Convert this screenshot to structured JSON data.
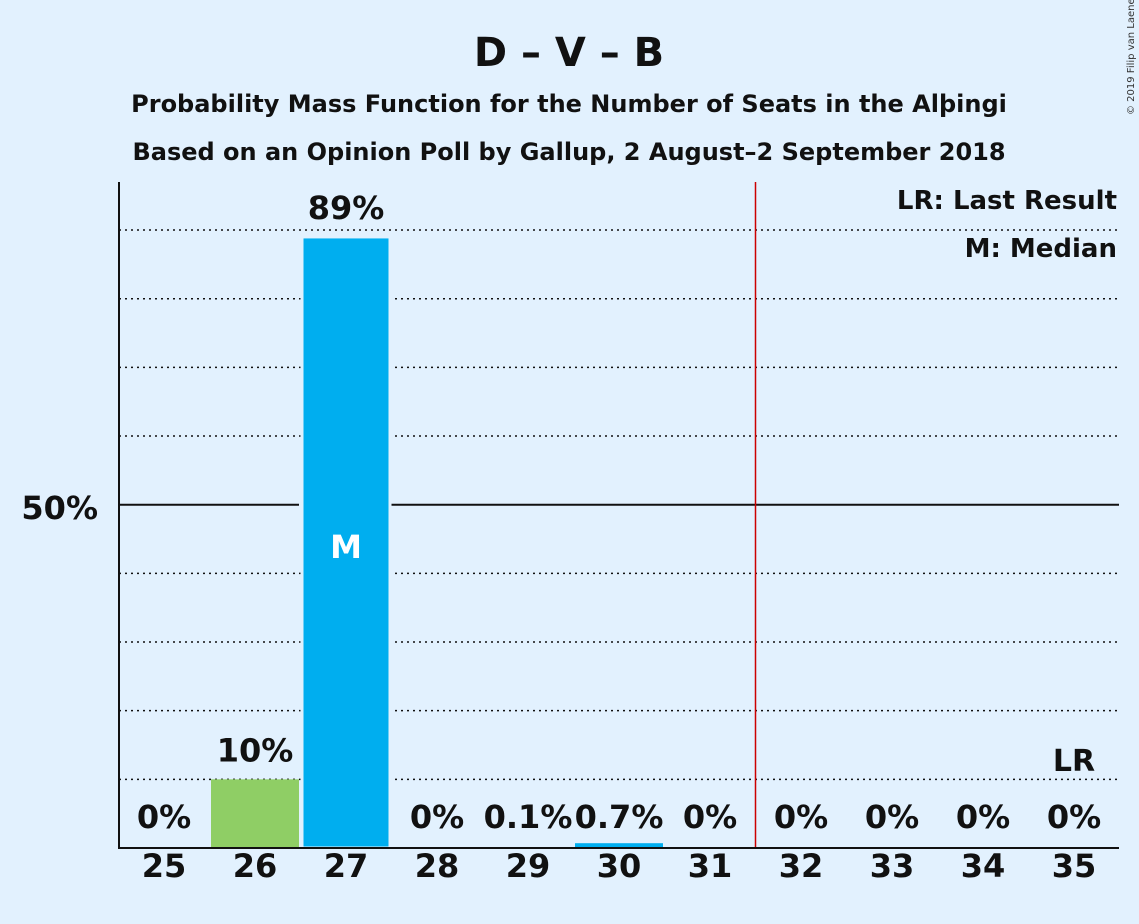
{
  "title": "D – V – B",
  "subtitle_1": "Probability Mass Function for the Number of Seats in the Alþingi",
  "subtitle_2": "Based on an Opinion Poll by Gallup, 2 August–2 September 2018",
  "copyright": "© 2019 Filip van Laenen",
  "legend": {
    "last_result": "LR: Last Result",
    "median": "M: Median"
  },
  "y_axis_label": "50%",
  "median_mark": "M",
  "last_result_mark": "LR",
  "colors": {
    "background": "#e2f1fe",
    "median_bar": "#00aeef",
    "other_bar": "#8fce65",
    "majority_line": "#cc0000",
    "text": "#111111"
  },
  "chart_data": {
    "type": "bar",
    "categories": [
      "25",
      "26",
      "27",
      "28",
      "29",
      "30",
      "31",
      "32",
      "33",
      "34",
      "35"
    ],
    "values": [
      0,
      10,
      89,
      0,
      0.1,
      0.7,
      0,
      0,
      0,
      0,
      0
    ],
    "value_labels": [
      "0%",
      "10%",
      "89%",
      "0%",
      "0.1%",
      "0.7%",
      "0%",
      "0%",
      "0%",
      "0%",
      "0%"
    ],
    "median_seat": "27",
    "last_result_seat": "35",
    "majority_line_after_seat": "31",
    "ylim": [
      0,
      97
    ],
    "y_ticks": [
      10,
      20,
      30,
      40,
      50,
      60,
      70,
      80,
      90
    ],
    "y_labeled_tick": 50,
    "grid": true,
    "legend_placement": "top-right"
  }
}
